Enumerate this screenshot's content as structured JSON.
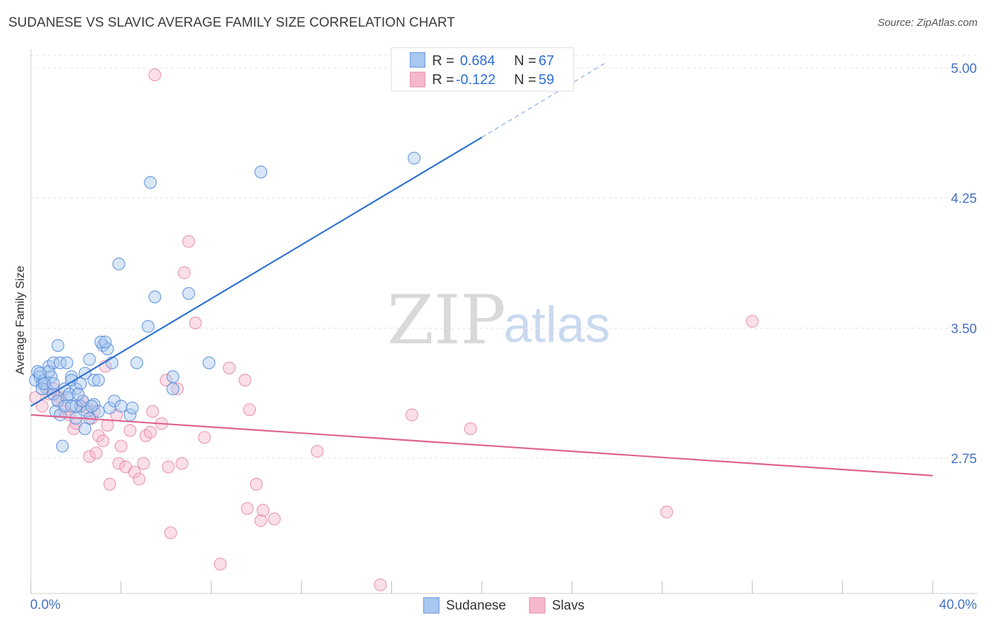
{
  "title": "SUDANESE VS SLAVIC AVERAGE FAMILY SIZE CORRELATION CHART",
  "source": "Source: ZipAtlas.com",
  "watermark": {
    "zip": "ZIP",
    "atlas": "atlas"
  },
  "chart_data": {
    "type": "scatter",
    "xlabel": "",
    "ylabel": "Average Family Size",
    "xlim": [
      0.0,
      40.0
    ],
    "ylim": [
      2.0,
      5.1
    ],
    "x_tick_labels": {
      "min": "0.0%",
      "max": "40.0%"
    },
    "y_ticks": [
      {
        "value": 5.0,
        "label": "5.00"
      },
      {
        "value": 4.25,
        "label": "4.25"
      },
      {
        "value": 3.5,
        "label": "3.50"
      },
      {
        "value": 2.75,
        "label": "2.75"
      }
    ],
    "grid": true,
    "legend_position": "top-center",
    "colors": {
      "sudanese_fill": "#a9c8f0",
      "sudanese_stroke": "#5b8fd9",
      "sudanese_line": "#2f72d0",
      "slavs_fill": "#f6b8cc",
      "slavs_stroke": "#e587a8",
      "slavs_line": "#e0628f"
    },
    "legend": {
      "r_label": "R =",
      "n_label": "N =",
      "entries": [
        {
          "r": "0.684",
          "n": "67"
        },
        {
          "r": "-0.122",
          "n": "59"
        }
      ]
    },
    "series": [
      {
        "name": "Sudanese",
        "r": 0.684,
        "n": 67,
        "trend": {
          "x0": 0.0,
          "y0": 3.05,
          "x_solid_end": 20.0,
          "y_solid_end": 4.6,
          "x_dashed_end": 25.5,
          "y_dashed_end": 5.03
        },
        "points": [
          [
            0.2,
            3.2
          ],
          [
            0.3,
            3.25
          ],
          [
            0.4,
            3.22
          ],
          [
            0.5,
            3.18
          ],
          [
            0.6,
            3.2
          ],
          [
            0.7,
            3.15
          ],
          [
            0.8,
            3.28
          ],
          [
            0.9,
            3.22
          ],
          [
            1.0,
            3.12
          ],
          [
            1.2,
            3.08
          ],
          [
            0.5,
            3.15
          ],
          [
            0.6,
            3.18
          ],
          [
            0.8,
            3.25
          ],
          [
            1.0,
            3.3
          ],
          [
            1.2,
            3.4
          ],
          [
            1.5,
            3.15
          ],
          [
            1.6,
            3.1
          ],
          [
            1.8,
            3.22
          ],
          [
            2.0,
            3.15
          ],
          [
            2.2,
            3.05
          ],
          [
            1.1,
            3.02
          ],
          [
            1.3,
            3.0
          ],
          [
            1.5,
            3.05
          ],
          [
            1.7,
            3.12
          ],
          [
            2.0,
            3.05
          ],
          [
            2.3,
            3.08
          ],
          [
            2.5,
            3.02
          ],
          [
            2.6,
            2.98
          ],
          [
            2.8,
            3.06
          ],
          [
            3.0,
            3.02
          ],
          [
            1.4,
            2.82
          ],
          [
            1.8,
            3.2
          ],
          [
            2.2,
            3.18
          ],
          [
            2.4,
            3.24
          ],
          [
            2.6,
            3.32
          ],
          [
            2.8,
            3.2
          ],
          [
            3.0,
            3.2
          ],
          [
            3.2,
            3.4
          ],
          [
            3.4,
            3.38
          ],
          [
            3.5,
            3.04
          ],
          [
            1.3,
            3.3
          ],
          [
            1.8,
            3.05
          ],
          [
            2.0,
            2.98
          ],
          [
            2.4,
            2.92
          ],
          [
            2.7,
            3.05
          ],
          [
            3.1,
            3.42
          ],
          [
            3.3,
            3.42
          ],
          [
            3.6,
            3.3
          ],
          [
            3.7,
            3.08
          ],
          [
            4.0,
            3.05
          ],
          [
            4.4,
            3.0
          ],
          [
            4.5,
            3.04
          ],
          [
            4.7,
            3.3
          ],
          [
            5.2,
            3.51
          ],
          [
            5.3,
            4.34
          ],
          [
            5.5,
            3.68
          ],
          [
            6.3,
            3.22
          ],
          [
            6.3,
            3.15
          ],
          [
            7.0,
            3.7
          ],
          [
            7.9,
            3.3
          ],
          [
            3.9,
            3.87
          ],
          [
            10.2,
            4.4
          ],
          [
            17.0,
            4.48
          ],
          [
            1.6,
            3.3
          ],
          [
            2.1,
            3.12
          ],
          [
            0.4,
            3.24
          ],
          [
            1.0,
            3.18
          ]
        ]
      },
      {
        "name": "Slavs",
        "r": -0.122,
        "n": 59,
        "trend": {
          "x0": 0.0,
          "y0": 3.0,
          "x_end": 40.0,
          "y_end": 2.65
        },
        "points": [
          [
            0.2,
            3.1
          ],
          [
            0.5,
            3.05
          ],
          [
            0.8,
            3.12
          ],
          [
            1.0,
            3.15
          ],
          [
            1.3,
            3.1
          ],
          [
            1.5,
            3.02
          ],
          [
            1.7,
            3.0
          ],
          [
            1.9,
            2.92
          ],
          [
            2.0,
            2.95
          ],
          [
            2.2,
            3.05
          ],
          [
            2.3,
            3.08
          ],
          [
            2.5,
            3.04
          ],
          [
            2.6,
            2.76
          ],
          [
            2.7,
            2.98
          ],
          [
            2.8,
            3.02
          ],
          [
            3.0,
            2.88
          ],
          [
            3.2,
            2.85
          ],
          [
            3.3,
            3.28
          ],
          [
            3.4,
            2.94
          ],
          [
            3.5,
            2.6
          ],
          [
            3.8,
            3.0
          ],
          [
            3.9,
            2.72
          ],
          [
            4.0,
            2.82
          ],
          [
            4.2,
            2.7
          ],
          [
            4.4,
            2.91
          ],
          [
            4.6,
            2.67
          ],
          [
            4.8,
            2.63
          ],
          [
            5.0,
            2.72
          ],
          [
            5.1,
            2.88
          ],
          [
            5.3,
            2.9
          ],
          [
            5.4,
            3.02
          ],
          [
            5.5,
            4.96
          ],
          [
            5.8,
            2.95
          ],
          [
            6.0,
            3.2
          ],
          [
            6.1,
            2.7
          ],
          [
            6.2,
            2.32
          ],
          [
            6.5,
            3.15
          ],
          [
            6.7,
            2.72
          ],
          [
            6.8,
            3.82
          ],
          [
            7.0,
            4.0
          ],
          [
            7.3,
            3.53
          ],
          [
            7.7,
            2.87
          ],
          [
            8.4,
            2.14
          ],
          [
            8.8,
            3.27
          ],
          [
            9.5,
            3.2
          ],
          [
            9.6,
            2.46
          ],
          [
            9.7,
            3.03
          ],
          [
            10.0,
            2.6
          ],
          [
            10.2,
            2.39
          ],
          [
            10.3,
            2.45
          ],
          [
            10.8,
            2.4
          ],
          [
            12.7,
            2.79
          ],
          [
            15.5,
            2.02
          ],
          [
            16.9,
            3.0
          ],
          [
            19.5,
            2.92
          ],
          [
            28.2,
            2.44
          ],
          [
            32.0,
            3.54
          ],
          [
            2.9,
            2.78
          ],
          [
            1.2,
            3.08
          ]
        ]
      }
    ]
  },
  "bottom_legend": {
    "items": [
      {
        "label": "Sudanese"
      },
      {
        "label": "Slavs"
      }
    ]
  }
}
